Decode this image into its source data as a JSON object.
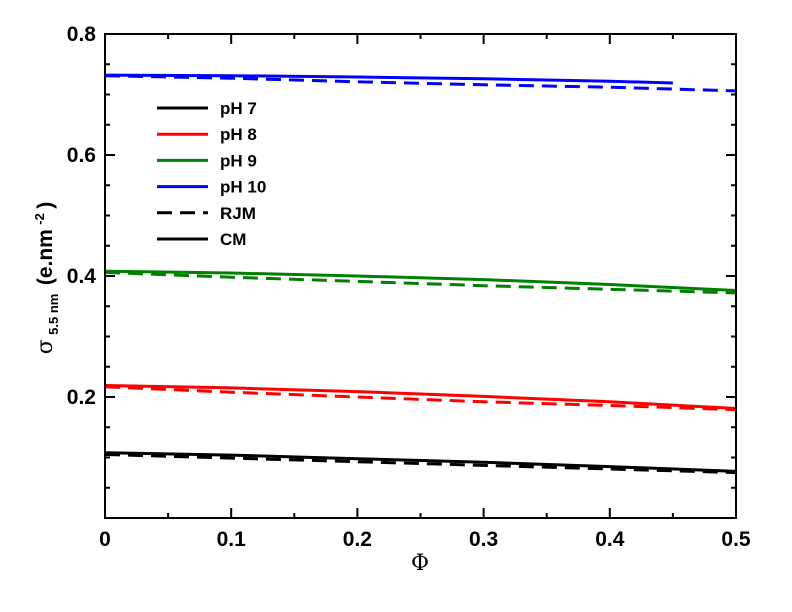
{
  "chart_data": {
    "type": "line",
    "xlabel": "Φ",
    "ylabel": {
      "symbol": "σ",
      "subscript": "5.5 nm",
      "text": "(e.nm",
      "superscript": "-2",
      "close": ")"
    },
    "xlim": [
      0,
      0.5
    ],
    "ylim": [
      0,
      0.8
    ],
    "x_ticks": [
      "0",
      "0.1",
      "0.2",
      "0.3",
      "0.4",
      "0.5"
    ],
    "y_ticks": [
      "0.2",
      "0.4",
      "0.6",
      "0.8"
    ],
    "y_tick_values": [
      0.2,
      0.4,
      0.6,
      0.8
    ],
    "legend_position": "top-left",
    "legend": [
      {
        "label": "pH 7",
        "color": "#000000",
        "style": "solid"
      },
      {
        "label": "pH 8",
        "color": "#ff0000",
        "style": "solid"
      },
      {
        "label": "pH 9",
        "color": "#008000",
        "style": "solid"
      },
      {
        "label": "pH 10",
        "color": "#0000ff",
        "style": "solid"
      },
      {
        "label": "RJM",
        "color": "#000000",
        "style": "dashed"
      },
      {
        "label": "CM",
        "color": "#000000",
        "style": "solid"
      }
    ],
    "series": [
      {
        "group": "pH 7",
        "model": "CM",
        "color": "#000000",
        "style": "solid",
        "x": [
          0,
          0.1,
          0.2,
          0.3,
          0.4,
          0.5
        ],
        "y": [
          0.108,
          0.104,
          0.098,
          0.092,
          0.085,
          0.077
        ]
      },
      {
        "group": "pH 7",
        "model": "RJM",
        "color": "#000000",
        "style": "dashed",
        "x": [
          0,
          0.1,
          0.2,
          0.3,
          0.4,
          0.5
        ],
        "y": [
          0.105,
          0.099,
          0.093,
          0.087,
          0.081,
          0.075
        ]
      },
      {
        "group": "pH 8",
        "model": "CM",
        "color": "#ff0000",
        "style": "solid",
        "x": [
          0,
          0.1,
          0.2,
          0.3,
          0.4,
          0.5
        ],
        "y": [
          0.219,
          0.215,
          0.209,
          0.201,
          0.192,
          0.181
        ]
      },
      {
        "group": "pH 8",
        "model": "RJM",
        "color": "#ff0000",
        "style": "dashed",
        "x": [
          0,
          0.1,
          0.2,
          0.3,
          0.4,
          0.5
        ],
        "y": [
          0.217,
          0.208,
          0.2,
          0.192,
          0.186,
          0.179
        ]
      },
      {
        "group": "pH 9",
        "model": "CM",
        "color": "#008000",
        "style": "solid",
        "x": [
          0,
          0.1,
          0.2,
          0.3,
          0.4,
          0.5
        ],
        "y": [
          0.408,
          0.405,
          0.4,
          0.394,
          0.386,
          0.376
        ]
      },
      {
        "group": "pH 9",
        "model": "RJM",
        "color": "#008000",
        "style": "dashed",
        "x": [
          0,
          0.1,
          0.2,
          0.3,
          0.4,
          0.5
        ],
        "y": [
          0.406,
          0.398,
          0.391,
          0.384,
          0.378,
          0.372
        ]
      },
      {
        "group": "pH 10",
        "model": "CM",
        "color": "#0000ff",
        "style": "solid",
        "x": [
          0,
          0.1,
          0.2,
          0.3,
          0.4,
          0.45
        ],
        "y": [
          0.732,
          0.731,
          0.729,
          0.726,
          0.722,
          0.719
        ]
      },
      {
        "group": "pH 10",
        "model": "RJM",
        "color": "#0000ff",
        "style": "dashed",
        "x": [
          0,
          0.1,
          0.2,
          0.3,
          0.4,
          0.5
        ],
        "y": [
          0.731,
          0.727,
          0.721,
          0.716,
          0.712,
          0.706
        ]
      }
    ]
  }
}
